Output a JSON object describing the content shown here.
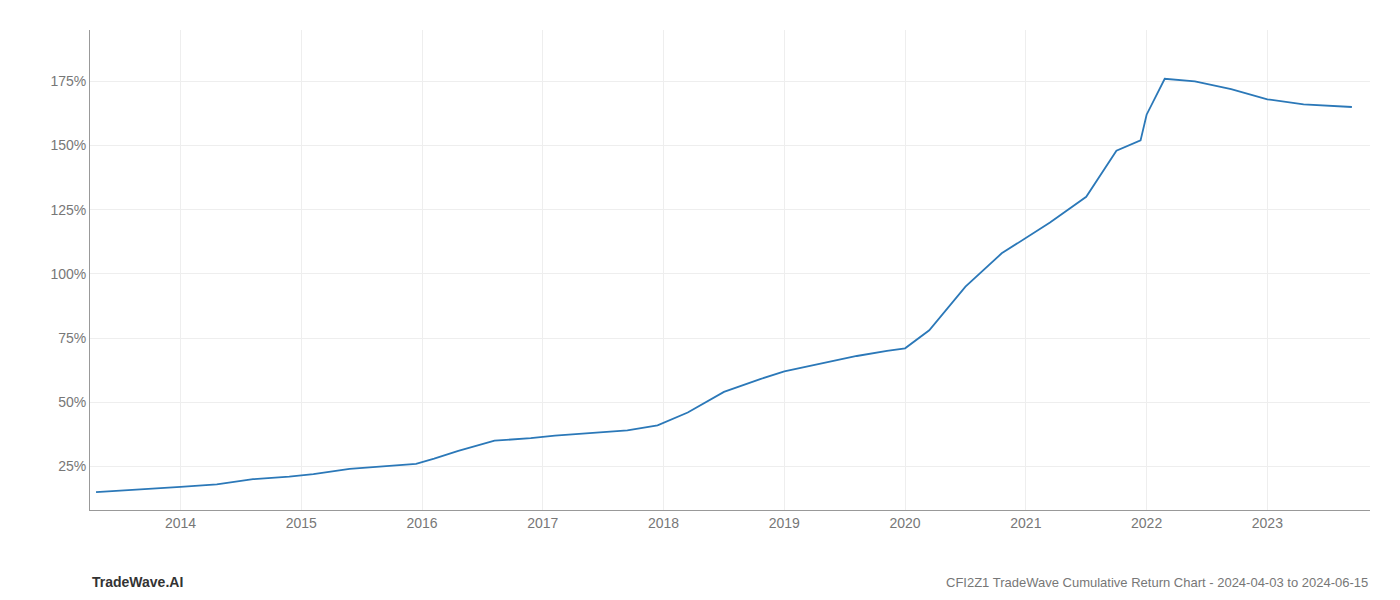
{
  "chart_data": {
    "type": "line",
    "x": [
      2013.3,
      2013.7,
      2014.0,
      2014.3,
      2014.6,
      2014.9,
      2015.1,
      2015.4,
      2015.7,
      2015.95,
      2016.1,
      2016.3,
      2016.6,
      2016.9,
      2017.1,
      2017.4,
      2017.7,
      2017.95,
      2018.2,
      2018.5,
      2018.8,
      2019.0,
      2019.3,
      2019.6,
      2019.85,
      2020.0,
      2020.2,
      2020.5,
      2020.8,
      2021.0,
      2021.2,
      2021.5,
      2021.75,
      2021.95,
      2022.0,
      2022.15,
      2022.4,
      2022.7,
      2023.0,
      2023.3,
      2023.7
    ],
    "values": [
      15,
      16,
      17,
      18,
      20,
      21,
      22,
      24,
      25,
      26,
      28,
      31,
      35,
      36,
      37,
      38,
      39,
      41,
      46,
      54,
      59,
      62,
      65,
      68,
      70,
      71,
      78,
      95,
      108,
      114,
      120,
      130,
      148,
      152,
      162,
      176,
      175,
      172,
      168,
      166,
      165
    ],
    "color": "#2b78b8",
    "xlim": [
      2013.25,
      2023.85
    ],
    "xticks": [
      2014,
      2015,
      2016,
      2017,
      2018,
      2019,
      2020,
      2021,
      2022,
      2023
    ],
    "ylim": [
      8,
      195
    ],
    "yticks": [
      {
        "value": 25,
        "label": "25%"
      },
      {
        "value": 50,
        "label": "50%"
      },
      {
        "value": 75,
        "label": "75%"
      },
      {
        "value": 100,
        "label": "100%"
      },
      {
        "value": 125,
        "label": "125%"
      },
      {
        "value": 150,
        "label": "150%"
      },
      {
        "value": 175,
        "label": "175%"
      }
    ],
    "grid": true,
    "annotations": [
      "TradeWave.AI",
      "CFI2Z1 TradeWave Cumulative Return Chart - 2024-04-03 to 2024-06-15"
    ]
  }
}
